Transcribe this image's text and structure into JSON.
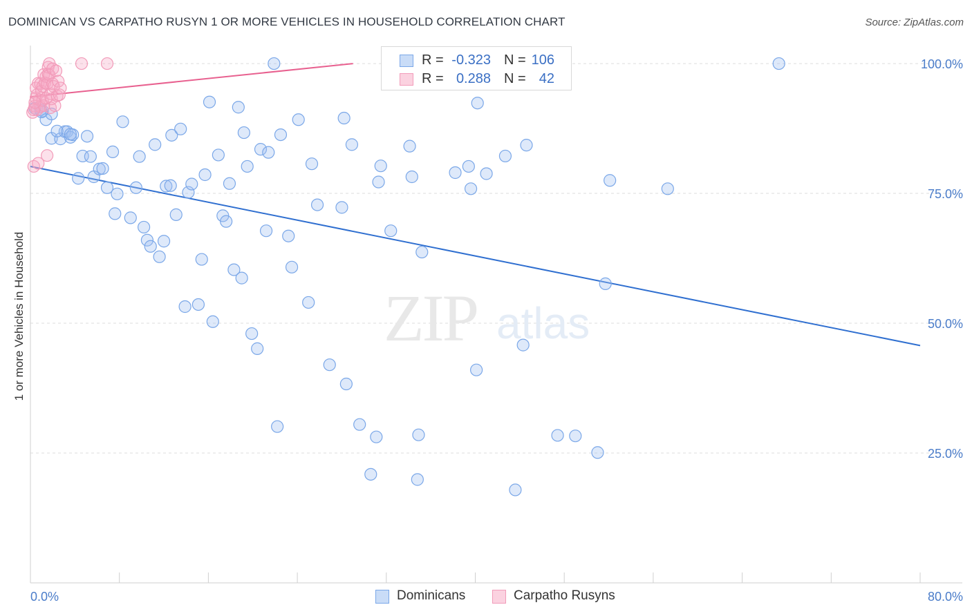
{
  "header": {
    "title": "DOMINICAN VS CARPATHO RUSYN 1 OR MORE VEHICLES IN HOUSEHOLD CORRELATION CHART",
    "source": "Source: ZipAtlas.com"
  },
  "watermark": {
    "zip": "ZIP",
    "atlas": "atlas"
  },
  "legend": {
    "rows": [
      {
        "r_label": "R =",
        "r_value": "-0.323",
        "n_label": "N =",
        "n_value": "106",
        "color": "#7aa7e8"
      },
      {
        "r_label": "R =",
        "r_value": "0.288",
        "n_label": "N =",
        "n_value": "42",
        "color": "#f29bb9"
      }
    ]
  },
  "bottom_legend": {
    "items": [
      {
        "label": "Dominicans",
        "color": "#7aa7e8"
      },
      {
        "label": "Carpatho Rusyns",
        "color": "#f29bb9"
      }
    ]
  },
  "chart_data": {
    "type": "scatter",
    "title": "DOMINICAN VS CARPATHO RUSYN 1 OR MORE VEHICLES IN HOUSEHOLD CORRELATION CHART",
    "xlabel": "",
    "ylabel": "1 or more Vehicles in Household",
    "xlim": [
      0,
      80
    ],
    "ylim": [
      0,
      104
    ],
    "x_tick_labels": [
      "0.0%",
      "80.0%"
    ],
    "y_ticks": [
      25,
      50,
      75,
      100
    ],
    "y_tick_labels": [
      "25.0%",
      "50.0%",
      "75.0%",
      "100.0%"
    ],
    "grid": true,
    "legend_position": "top-center",
    "series": [
      {
        "name": "Dominicans",
        "color": "#7aa7e8",
        "trend": {
          "x": [
            0,
            80
          ],
          "y": [
            80.2,
            45.7
          ]
        },
        "points": [
          [
            0.9,
            91.1
          ],
          [
            1.1,
            90.9
          ],
          [
            1.4,
            89.2
          ],
          [
            1.9,
            90.3
          ],
          [
            1.9,
            85.6
          ],
          [
            2.7,
            85.5
          ],
          [
            3.1,
            86.9
          ],
          [
            3.3,
            86.9
          ],
          [
            3.6,
            85.8
          ],
          [
            3.8,
            86.3
          ],
          [
            5.1,
            86.0
          ],
          [
            4.3,
            77.9
          ],
          [
            4.7,
            82.2
          ],
          [
            5.4,
            82.1
          ],
          [
            5.7,
            78.2
          ],
          [
            6.2,
            79.7
          ],
          [
            6.5,
            79.8
          ],
          [
            6.9,
            76.1
          ],
          [
            7.4,
            83.0
          ],
          [
            7.8,
            74.9
          ],
          [
            8.3,
            88.8
          ],
          [
            7.6,
            71.1
          ],
          [
            9.0,
            70.3
          ],
          [
            9.5,
            76.1
          ],
          [
            9.8,
            82.1
          ],
          [
            10.2,
            68.5
          ],
          [
            10.5,
            66.0
          ],
          [
            10.8,
            64.8
          ],
          [
            11.2,
            84.4
          ],
          [
            11.6,
            62.8
          ],
          [
            12.0,
            65.8
          ],
          [
            12.2,
            76.4
          ],
          [
            12.6,
            76.5
          ],
          [
            12.7,
            86.2
          ],
          [
            13.1,
            70.9
          ],
          [
            13.5,
            87.4
          ],
          [
            13.9,
            53.2
          ],
          [
            14.2,
            75.2
          ],
          [
            14.5,
            76.8
          ],
          [
            15.1,
            53.6
          ],
          [
            15.4,
            62.3
          ],
          [
            15.7,
            78.6
          ],
          [
            16.1,
            92.6
          ],
          [
            16.4,
            50.3
          ],
          [
            16.9,
            82.4
          ],
          [
            17.3,
            70.7
          ],
          [
            17.6,
            69.6
          ],
          [
            17.9,
            76.9
          ],
          [
            18.3,
            60.3
          ],
          [
            18.7,
            91.6
          ],
          [
            19.0,
            58.7
          ],
          [
            19.2,
            86.7
          ],
          [
            19.5,
            80.2
          ],
          [
            19.9,
            48.0
          ],
          [
            20.4,
            45.1
          ],
          [
            20.7,
            83.5
          ],
          [
            21.2,
            67.8
          ],
          [
            21.4,
            82.9
          ],
          [
            21.9,
            100.0
          ],
          [
            22.2,
            30.1
          ],
          [
            22.5,
            86.3
          ],
          [
            23.2,
            66.8
          ],
          [
            23.5,
            60.8
          ],
          [
            24.1,
            89.2
          ],
          [
            25.0,
            54.0
          ],
          [
            25.3,
            80.7
          ],
          [
            25.8,
            72.8
          ],
          [
            26.9,
            42.0
          ],
          [
            28.2,
            89.5
          ],
          [
            28.0,
            72.3
          ],
          [
            28.4,
            38.3
          ],
          [
            28.9,
            84.4
          ],
          [
            29.6,
            30.5
          ],
          [
            30.6,
            20.9
          ],
          [
            31.1,
            28.1
          ],
          [
            31.3,
            77.2
          ],
          [
            31.5,
            80.3
          ],
          [
            32.4,
            67.8
          ],
          [
            33.0,
            100.0
          ],
          [
            34.1,
            84.1
          ],
          [
            34.3,
            78.2
          ],
          [
            34.8,
            19.9
          ],
          [
            34.9,
            28.5
          ],
          [
            35.2,
            63.7
          ],
          [
            37.8,
            100.0
          ],
          [
            38.2,
            79.0
          ],
          [
            39.4,
            80.2
          ],
          [
            39.6,
            75.9
          ],
          [
            40.1,
            41.0
          ],
          [
            40.2,
            92.4
          ],
          [
            41.0,
            78.8
          ],
          [
            42.7,
            82.2
          ],
          [
            43.6,
            17.9
          ],
          [
            44.3,
            45.8
          ],
          [
            44.6,
            84.3
          ],
          [
            47.4,
            28.4
          ],
          [
            49.0,
            28.3
          ],
          [
            51.0,
            25.1
          ],
          [
            51.7,
            57.6
          ],
          [
            52.1,
            77.5
          ],
          [
            57.3,
            75.9
          ],
          [
            67.3,
            100.0
          ],
          [
            0.4,
            91.4
          ],
          [
            1.0,
            90.7
          ],
          [
            2.4,
            87.0
          ],
          [
            3.6,
            86.4
          ]
        ]
      },
      {
        "name": "Carpatho Rusyns",
        "color": "#f29bb9",
        "trend": {
          "x": [
            0,
            29
          ],
          "y": [
            93.6,
            100.0
          ]
        },
        "points": [
          [
            0.2,
            90.6
          ],
          [
            0.3,
            80.2
          ],
          [
            0.4,
            91.8
          ],
          [
            0.5,
            93.4
          ],
          [
            0.5,
            95.3
          ],
          [
            0.6,
            91.1
          ],
          [
            0.6,
            94.0
          ],
          [
            0.7,
            96.2
          ],
          [
            0.7,
            80.8
          ],
          [
            0.8,
            93.0
          ],
          [
            0.9,
            96.1
          ],
          [
            0.9,
            91.7
          ],
          [
            1.0,
            94.7
          ],
          [
            1.1,
            95.6
          ],
          [
            1.1,
            92.9
          ],
          [
            1.2,
            97.9
          ],
          [
            1.2,
            91.9
          ],
          [
            1.3,
            96.3
          ],
          [
            1.4,
            93.3
          ],
          [
            1.4,
            97.5
          ],
          [
            1.5,
            82.3
          ],
          [
            1.5,
            96.1
          ],
          [
            1.6,
            99.3
          ],
          [
            1.6,
            98.0
          ],
          [
            1.7,
            100.0
          ],
          [
            1.7,
            97.8
          ],
          [
            1.8,
            94.2
          ],
          [
            1.8,
            91.5
          ],
          [
            1.9,
            93.2
          ],
          [
            2.0,
            96.1
          ],
          [
            2.0,
            99.0
          ],
          [
            2.1,
            95.6
          ],
          [
            2.2,
            91.9
          ],
          [
            2.3,
            98.6
          ],
          [
            2.4,
            93.8
          ],
          [
            2.5,
            96.6
          ],
          [
            2.6,
            94.0
          ],
          [
            2.7,
            95.3
          ],
          [
            4.6,
            100.0
          ],
          [
            6.9,
            100.0
          ],
          [
            0.3,
            91.1
          ],
          [
            0.4,
            92.5
          ]
        ]
      }
    ]
  }
}
